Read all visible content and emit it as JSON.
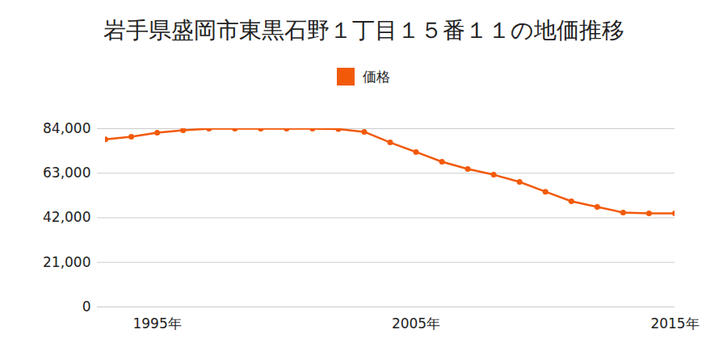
{
  "chart_data": {
    "type": "line",
    "title": "岩手県盛岡市東黒石野１丁目１５番１１の地価推移",
    "x": [
      1993,
      1994,
      1995,
      1996,
      1997,
      1998,
      1999,
      2000,
      2001,
      2002,
      2003,
      2004,
      2005,
      2006,
      2007,
      2008,
      2009,
      2010,
      2011,
      2012,
      2013,
      2014,
      2015
    ],
    "series": [
      {
        "name": "価格",
        "color": "#f25a0a",
        "marker": "circle",
        "values": [
          79000,
          80200,
          82100,
          83200,
          84000,
          84000,
          84000,
          84000,
          84000,
          83800,
          82500,
          77500,
          73000,
          68400,
          65000,
          62300,
          58900,
          54300,
          49800,
          47100,
          44500,
          44100,
          44100
        ]
      }
    ],
    "xlim": [
      1993,
      2015
    ],
    "xticks": [
      {
        "value": 1995,
        "label": "1995年"
      },
      {
        "value": 2005,
        "label": "2005年"
      },
      {
        "value": 2015,
        "label": "2015年"
      }
    ],
    "ylim": [
      0,
      84000
    ],
    "yticks": [
      0,
      {
        "value": 21000,
        "label": "21,000"
      },
      {
        "value": 42000,
        "label": "42,000"
      },
      {
        "value": 63000,
        "label": "63,000"
      },
      {
        "value": 84000,
        "label": "84,000"
      }
    ],
    "grid": true,
    "legend": "top"
  }
}
